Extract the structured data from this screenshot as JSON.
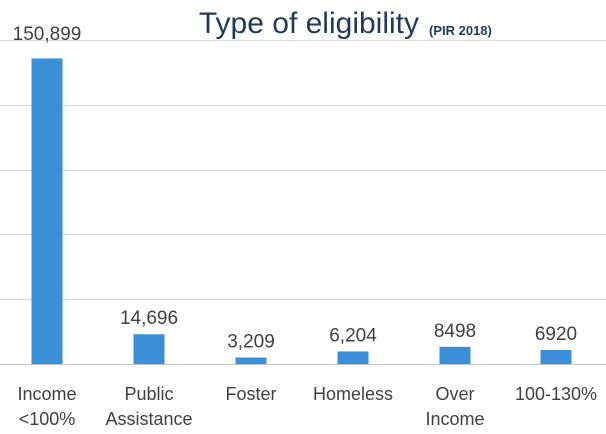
{
  "chart_data": {
    "type": "bar",
    "title": "Type of eligibility",
    "subtitle": "(PIR 2018)",
    "categories": [
      [
        "Income",
        "<100%"
      ],
      [
        "Public",
        "Assistance"
      ],
      [
        "Foster"
      ],
      [
        "Homeless"
      ],
      [
        "Over",
        "Income"
      ],
      [
        "100-130%"
      ]
    ],
    "values": [
      150899,
      14696,
      3209,
      6204,
      8498,
      6920
    ],
    "data_labels": [
      "150,899",
      "14,696",
      "3,209",
      "6,204",
      "8498",
      "6920"
    ],
    "ylim": [
      0,
      160000
    ],
    "grid": true,
    "legend": "none",
    "bar_color": "#3a8fd8"
  }
}
